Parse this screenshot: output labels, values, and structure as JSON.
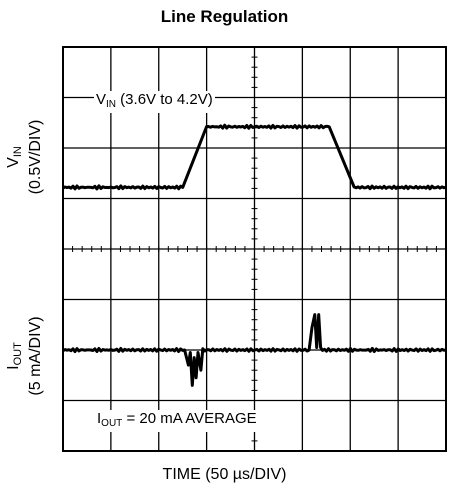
{
  "chart_data": {
    "type": "line",
    "title": "Line Regulation",
    "xlabel": "TIME (50 µs/DIV)",
    "grid": true,
    "divisions": {
      "x": 8,
      "y": 8
    },
    "time_per_div_us": 50,
    "series": [
      {
        "name": "VIN (3.6V to 4.2V)",
        "label_main": "V",
        "label_sub": "IN",
        "label_rest": " (3.6V to 4.2V)",
        "scale": "0.5V/DIV",
        "ylabel_main": "V",
        "ylabel_sub": "IN",
        "ylabel_scale": "(0.5V/DIV)",
        "x_us": [
          0,
          125,
          150,
          278,
          304,
          400
        ],
        "y_div": [
          5.22,
          5.22,
          6.42,
          6.42,
          5.22,
          5.22
        ]
      },
      {
        "name": "IOUT = 20 mA AVERAGE",
        "label_main": "I",
        "label_sub": "OUT",
        "label_rest": " = 20 mA AVERAGE",
        "scale": "5 mA/DIV",
        "ylabel_main": "I",
        "ylabel_sub": "OUT",
        "ylabel_scale": "(5 mA/DIV)",
        "x_us": [
          0,
          127,
          131,
          133,
          135,
          137,
          139,
          141,
          144,
          146,
          257,
          260,
          263,
          265,
          267,
          269,
          271,
          400
        ],
        "y_div": [
          2.0,
          2.0,
          1.7,
          1.95,
          1.3,
          1.85,
          1.45,
          1.95,
          1.6,
          2.0,
          2.0,
          2.45,
          2.7,
          2.05,
          2.7,
          2.05,
          2.0,
          2.0
        ]
      }
    ]
  }
}
